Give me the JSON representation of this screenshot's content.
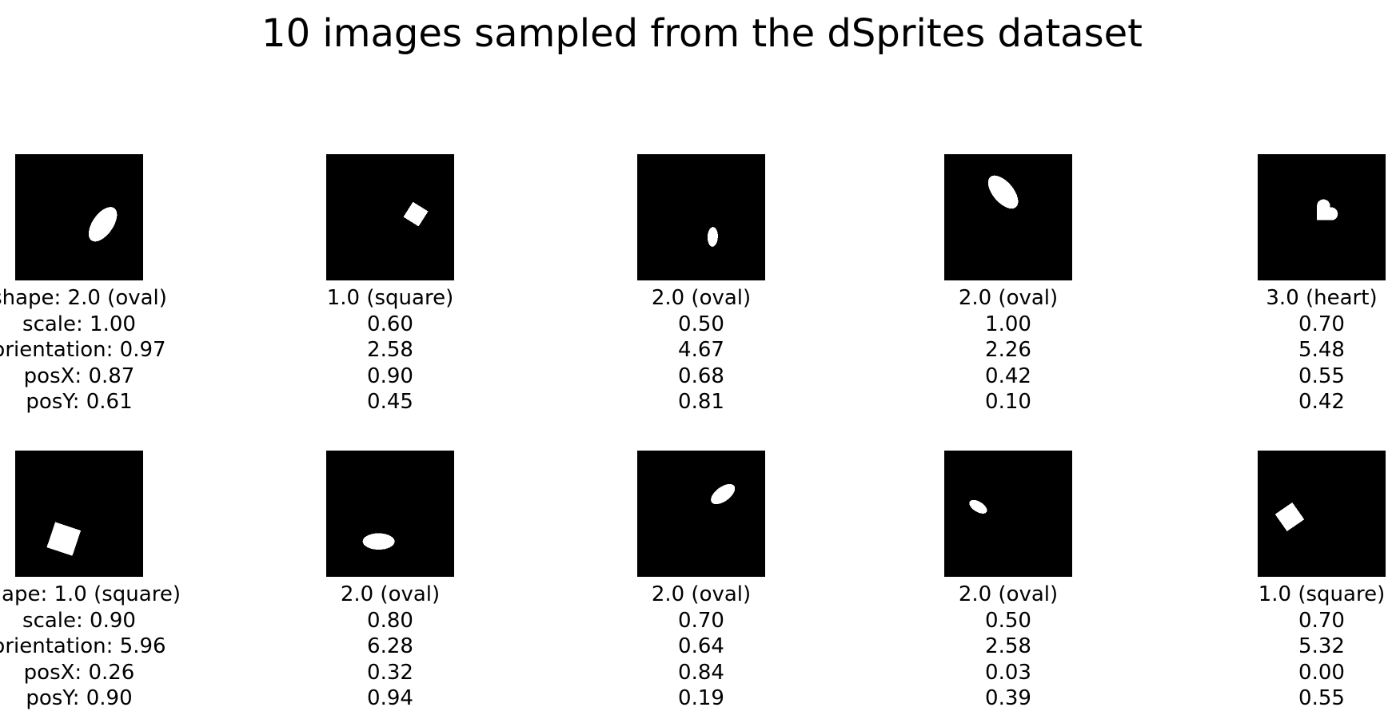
{
  "title": "10 images sampled from the dSprites dataset",
  "label_prefixes": {
    "shape": "shape: ",
    "scale": "scale: ",
    "orientation": "orientation: ",
    "posX": "posX: ",
    "posY": "posY: "
  },
  "samples": [
    {
      "shape": "2.0 (oval)",
      "shape_type": "oval",
      "scale": "1.00",
      "orientation": "0.97",
      "posX": "0.87",
      "posY": "0.61",
      "show_prefixes": true
    },
    {
      "shape": "1.0 (square)",
      "shape_type": "square",
      "scale": "0.60",
      "orientation": "2.58",
      "posX": "0.90",
      "posY": "0.45",
      "show_prefixes": false
    },
    {
      "shape": "2.0 (oval)",
      "shape_type": "oval",
      "scale": "0.50",
      "orientation": "4.67",
      "posX": "0.68",
      "posY": "0.81",
      "show_prefixes": false
    },
    {
      "shape": "2.0 (oval)",
      "shape_type": "oval",
      "scale": "1.00",
      "orientation": "2.26",
      "posX": "0.42",
      "posY": "0.10",
      "show_prefixes": false
    },
    {
      "shape": "3.0 (heart)",
      "shape_type": "heart",
      "scale": "0.70",
      "orientation": "5.48",
      "posX": "0.55",
      "posY": "0.42",
      "show_prefixes": false
    },
    {
      "shape": "1.0 (square)",
      "shape_type": "square",
      "scale": "0.90",
      "orientation": "5.96",
      "posX": "0.26",
      "posY": "0.90",
      "show_prefixes": true
    },
    {
      "shape": "2.0 (oval)",
      "shape_type": "oval",
      "scale": "0.80",
      "orientation": "6.28",
      "posX": "0.32",
      "posY": "0.94",
      "show_prefixes": false
    },
    {
      "shape": "2.0 (oval)",
      "shape_type": "oval",
      "scale": "0.70",
      "orientation": "0.64",
      "posX": "0.84",
      "posY": "0.19",
      "show_prefixes": false
    },
    {
      "shape": "2.0 (oval)",
      "shape_type": "oval",
      "scale": "0.50",
      "orientation": "2.58",
      "posX": "0.03",
      "posY": "0.39",
      "show_prefixes": false
    },
    {
      "shape": "1.0 (square)",
      "shape_type": "square",
      "scale": "0.70",
      "orientation": "5.32",
      "posX": "0.00",
      "posY": "0.55",
      "show_prefixes": false
    }
  ],
  "colors": {
    "background": "#000000",
    "sprite": "#ffffff"
  }
}
